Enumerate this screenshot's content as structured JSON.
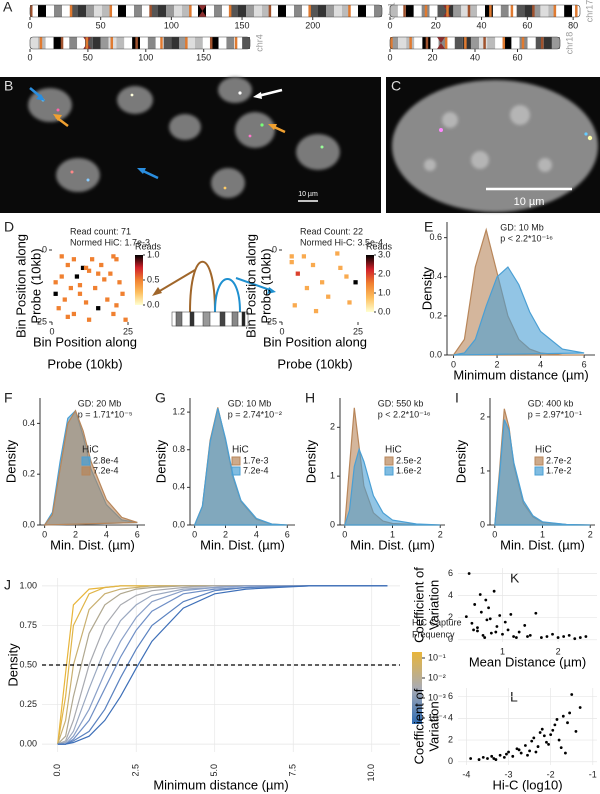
{
  "ideogram_panel": {
    "panel": "A",
    "chromosomes": [
      {
        "label": "chr1",
        "xlim": [
          0,
          249
        ],
        "ticks": [
          0,
          50,
          100,
          150,
          200
        ]
      },
      {
        "label": "chr17",
        "xlim": [
          0,
          83
        ],
        "ticks": [
          0,
          20,
          40,
          60,
          80
        ]
      },
      {
        "label": "chr4",
        "xlim": [
          0,
          190
        ],
        "ticks": [
          0,
          50,
          100,
          150
        ]
      },
      {
        "label": "chr18",
        "xlim": [
          0,
          80
        ],
        "ticks": [
          0,
          20,
          40,
          60
        ]
      }
    ]
  },
  "image_panels": [
    {
      "panel": "B",
      "scale_label": "10 µm"
    },
    {
      "panel": "C",
      "scale_label": "10 µm"
    }
  ],
  "chart_data": [
    {
      "type": "heatmap",
      "panel": "D",
      "annotations": [
        "Read count: 71",
        "Normed HiC: 1.7e-3"
      ],
      "ylabel": [
        "Bin Position along",
        "Probe (10kb)"
      ],
      "xlabel": [
        "Bin Position along",
        "Probe (10kb)"
      ],
      "xlim": [
        0,
        25
      ],
      "ylim": [
        25,
        0
      ],
      "xticks": [
        0,
        25
      ],
      "yticks": [
        0,
        25
      ],
      "colorbar_title": "Reads",
      "clim": [
        0,
        1
      ],
      "colorbar_ticks": [
        {
          "value": 0,
          "label": "0.0"
        },
        0.5,
        {
          "value": 1,
          "label": "1.0"
        }
      ],
      "cells": [
        [
          3,
          2,
          0.5
        ],
        [
          7,
          3,
          0.5
        ],
        [
          13,
          3,
          0.5
        ],
        [
          20,
          2,
          0.5
        ],
        [
          21,
          3,
          0.5
        ],
        [
          5,
          5,
          0.5
        ],
        [
          10,
          6,
          1
        ],
        [
          11,
          6,
          0.5
        ],
        [
          12,
          7,
          0.5
        ],
        [
          15,
          8,
          0.5
        ],
        [
          19,
          8,
          0.5
        ],
        [
          3,
          9,
          0.5
        ],
        [
          8,
          9,
          1
        ],
        [
          1,
          11,
          0.5
        ],
        [
          17,
          10,
          0.5
        ],
        [
          22,
          11,
          0.5
        ],
        [
          6,
          13,
          0.5
        ],
        [
          14,
          13,
          0.5
        ],
        [
          1,
          15,
          1
        ],
        [
          9,
          15,
          0.5
        ],
        [
          23,
          15,
          0.5
        ],
        [
          4,
          17,
          0.5
        ],
        [
          11,
          18,
          0.5
        ],
        [
          18,
          17,
          0.5
        ],
        [
          2,
          20,
          0.5
        ],
        [
          15,
          20,
          1
        ],
        [
          7,
          22,
          0.5
        ],
        [
          20,
          22,
          0.5
        ],
        [
          12,
          24,
          0.5
        ],
        [
          24,
          24,
          0.5
        ],
        [
          16,
          5,
          0.5
        ],
        [
          9,
          12,
          0.5
        ],
        [
          21,
          19,
          0.5
        ],
        [
          5,
          23,
          0.5
        ]
      ]
    },
    {
      "type": "heatmap",
      "annotations": [
        "Read Count: 22",
        "Normed Hi-C: 3.5e-4"
      ],
      "ylabel": [
        "Bin Position along",
        "Probe (10kb)"
      ],
      "xlabel": [
        "Bin Position along",
        "Probe (10kb)"
      ],
      "xlim": [
        0,
        25
      ],
      "ylim": [
        25,
        0
      ],
      "xticks": [
        0,
        25
      ],
      "yticks": [
        0,
        25
      ],
      "colorbar_title": "Reads",
      "clim": [
        0,
        3
      ],
      "colorbar_ticks": [
        {
          "value": 0,
          "label": "0.0"
        },
        {
          "value": 1,
          "label": "1.0"
        },
        {
          "value": 2,
          "label": "2.0"
        },
        {
          "value": 3,
          "label": "3.0"
        }
      ],
      "cells": [
        [
          3,
          2,
          1
        ],
        [
          7,
          2,
          1
        ],
        [
          18,
          1,
          1
        ],
        [
          3,
          4,
          1
        ],
        [
          10,
          5,
          1
        ],
        [
          19,
          6,
          1
        ],
        [
          5,
          8,
          2
        ],
        [
          21,
          9,
          1
        ],
        [
          13,
          11,
          1
        ],
        [
          24,
          11,
          3
        ],
        [
          8,
          13,
          1
        ],
        [
          15,
          16,
          1
        ],
        [
          22,
          18,
          1
        ],
        [
          4,
          19,
          1
        ],
        [
          11,
          21,
          1
        ]
      ]
    },
    {
      "type": "density",
      "panel": "E",
      "annotations": [
        "GD: 10 Mb",
        "p < 2.2*10⁻¹⁶"
      ],
      "ylabel": [
        "Density"
      ],
      "xlabel": [
        "Minimum distance (µm)"
      ],
      "xlim": [
        -0.3,
        6.5
      ],
      "ylim": [
        0,
        0.68
      ],
      "xticks": [
        0,
        2,
        4,
        6
      ],
      "yticks": [
        {
          "value": 0,
          "label": "0.0"
        },
        0.2,
        0.4,
        0.6
      ],
      "x": [
        0,
        0.5,
        1,
        1.5,
        2,
        2.5,
        3,
        3.5,
        4,
        5,
        6
      ],
      "series": [
        {
          "color": "#b8865a",
          "values": [
            0,
            0.08,
            0.45,
            0.64,
            0.42,
            0.2,
            0.08,
            0.03,
            0.01,
            0,
            0
          ]
        },
        {
          "color": "#4a9fd4",
          "values": [
            0,
            0.01,
            0.08,
            0.25,
            0.4,
            0.45,
            0.36,
            0.22,
            0.12,
            0.03,
            0.01
          ]
        }
      ]
    },
    {
      "type": "density",
      "panel": "F",
      "annotations": [
        "GD: 20 Mb",
        "p = 1.71*10⁻⁵"
      ],
      "ylabel": [
        "Density"
      ],
      "xlabel": [
        "Min. Dist. (µm)"
      ],
      "xlim": [
        -0.3,
        6.5
      ],
      "ylim": [
        0,
        0.5
      ],
      "xticks": [
        0,
        2,
        4,
        6
      ],
      "yticks": [
        {
          "value": 0,
          "label": "0.0"
        },
        0.2,
        0.4
      ],
      "legend_title": "HiC",
      "x": [
        0,
        0.5,
        1,
        1.5,
        2,
        2.5,
        3,
        4,
        5,
        6
      ],
      "series": [
        {
          "name": "2.8e-4",
          "color": "#4a9fd4",
          "values": [
            0,
            0.05,
            0.25,
            0.42,
            0.45,
            0.35,
            0.22,
            0.08,
            0.02,
            0.01
          ]
        },
        {
          "name": "7.2e-4",
          "color": "#b8865a",
          "values": [
            0,
            0.04,
            0.22,
            0.4,
            0.45,
            0.37,
            0.25,
            0.1,
            0.03,
            0.01
          ]
        }
      ]
    },
    {
      "type": "density",
      "panel": "G",
      "annotations": [
        "GD: 10 Mb",
        "p = 2.74*10⁻²"
      ],
      "ylabel": [
        "Density"
      ],
      "xlabel": [
        "Min. Dist. (µm)"
      ],
      "xlim": [
        -0.3,
        6.5
      ],
      "ylim": [
        0,
        1.35
      ],
      "xticks": [
        0,
        2,
        4,
        6
      ],
      "yticks": [
        {
          "value": 0,
          "label": "0.0"
        },
        0.4,
        0.8,
        1.2
      ],
      "legend_title": "HiC",
      "x": [
        0,
        0.5,
        1,
        1.5,
        2,
        2.5,
        3,
        4,
        5,
        6
      ],
      "series": [
        {
          "name": "1.7e-3",
          "color": "#b8865a",
          "values": [
            0,
            0.2,
            0.9,
            1.25,
            0.9,
            0.5,
            0.25,
            0.06,
            0.01,
            0
          ]
        },
        {
          "name": "7.2e-4",
          "color": "#4a9fd4",
          "values": [
            0,
            0.2,
            0.88,
            1.24,
            0.92,
            0.52,
            0.26,
            0.07,
            0.01,
            0
          ]
        }
      ]
    },
    {
      "type": "density",
      "panel": "H",
      "annotations": [
        "GD: 550 kb",
        "p < 2.2*10⁻¹⁶"
      ],
      "ylabel": [
        "Density"
      ],
      "xlabel": [
        "Min. Dist. (µm)"
      ],
      "xlim": [
        -0.1,
        2.1
      ],
      "ylim": [
        0,
        2.6
      ],
      "xticks": [
        0,
        1,
        2
      ],
      "yticks": [
        0,
        1,
        2
      ],
      "legend_title": "HiC",
      "x": [
        0,
        0.1,
        0.2,
        0.3,
        0.4,
        0.6,
        0.8,
        1,
        1.5,
        2
      ],
      "series": [
        {
          "name": "2.5e-2",
          "color": "#b8865a",
          "values": [
            0,
            1.2,
            2.4,
            1.6,
            0.8,
            0.25,
            0.08,
            0.03,
            0.01,
            0
          ]
        },
        {
          "name": "1.6e-2",
          "color": "#4a9fd4",
          "values": [
            0,
            0.3,
            1.2,
            1.55,
            1.3,
            0.6,
            0.25,
            0.1,
            0.02,
            0
          ]
        }
      ]
    },
    {
      "type": "density",
      "panel": "I",
      "annotations": [
        "GD: 400 kb",
        "p = 2.97*10⁻¹"
      ],
      "ylabel": [
        "Density"
      ],
      "xlabel": [
        "Min. Dist. (µm)"
      ],
      "xlim": [
        -0.1,
        2.1
      ],
      "ylim": [
        0,
        2.35
      ],
      "xticks": [
        0,
        1,
        2
      ],
      "yticks": [
        0,
        1,
        2
      ],
      "legend_title": "HiC",
      "x": [
        0,
        0.1,
        0.2,
        0.3,
        0.4,
        0.6,
        0.8,
        1,
        1.5,
        2
      ],
      "series": [
        {
          "name": "2.7e-2",
          "color": "#b8865a",
          "values": [
            0,
            1.0,
            2.15,
            1.8,
            1.1,
            0.4,
            0.15,
            0.05,
            0.01,
            0
          ]
        },
        {
          "name": "1.7e-2",
          "color": "#4a9fd4",
          "values": [
            0,
            0.9,
            1.95,
            1.75,
            1.15,
            0.45,
            0.17,
            0.06,
            0.01,
            0
          ]
        }
      ]
    },
    {
      "type": "ecdf",
      "panel": "J",
      "ylabel": [
        "Density"
      ],
      "xlabel": [
        "Minimum distance (µm)"
      ],
      "grid": true,
      "xlim": [
        -0.5,
        10.9
      ],
      "ylim": [
        -0.05,
        1.05
      ],
      "xticks": [
        {
          "value": 0,
          "label": "0.0"
        },
        2.5,
        {
          "value": 5,
          "label": "5.0"
        },
        7.5,
        {
          "value": 10,
          "label": "10.0"
        }
      ],
      "yticks": [
        {
          "value": 0,
          "label": "0.00"
        },
        {
          "value": 0.25,
          "label": "0.25"
        },
        {
          "value": 0.5,
          "label": "0.50"
        },
        {
          "value": 0.75,
          "label": "0.75"
        },
        {
          "value": 1,
          "label": "1.00"
        }
      ],
      "hline": 0.5,
      "legend_title": [
        "HiC Capture",
        "Frequency"
      ],
      "legend_ticks": [
        {
          "value": -1,
          "label": "10⁻¹"
        },
        {
          "value": -2,
          "label": "10⁻²"
        },
        {
          "value": -3,
          "label": "10⁻³"
        },
        {
          "value": -4,
          "label": "10⁻⁴"
        }
      ],
      "x": [
        0,
        0.25,
        0.5,
        1,
        1.5,
        2,
        2.5,
        3,
        4,
        5,
        6,
        8,
        10.5
      ],
      "series": [
        {
          "color": "#e8b53a",
          "values": [
            0,
            0.45,
            0.88,
            0.98,
            0.99,
            1,
            1,
            1,
            1,
            1,
            1,
            1,
            1
          ]
        },
        {
          "color": "#e0b548",
          "values": [
            0,
            0.3,
            0.75,
            0.95,
            0.99,
            1,
            1,
            1,
            1,
            1,
            1,
            1,
            1
          ]
        },
        {
          "color": "#c9b070",
          "values": [
            0,
            0.15,
            0.5,
            0.85,
            0.95,
            0.98,
            0.99,
            1,
            1,
            1,
            1,
            1,
            1
          ]
        },
        {
          "color": "#b0a890",
          "values": [
            0,
            0.05,
            0.3,
            0.7,
            0.88,
            0.95,
            0.98,
            0.99,
            1,
            1,
            1,
            1,
            1
          ]
        },
        {
          "color": "#a8aab0",
          "values": [
            0,
            0.02,
            0.15,
            0.5,
            0.75,
            0.88,
            0.94,
            0.97,
            0.99,
            1,
            1,
            1,
            1
          ]
        },
        {
          "color": "#9aa8c0",
          "values": [
            0,
            0.01,
            0.08,
            0.35,
            0.6,
            0.78,
            0.88,
            0.94,
            0.98,
            0.99,
            1,
            1,
            1
          ]
        },
        {
          "color": "#8aa0c8",
          "values": [
            0,
            0,
            0.05,
            0.22,
            0.45,
            0.65,
            0.8,
            0.9,
            0.97,
            0.99,
            1,
            1,
            1
          ]
        },
        {
          "color": "#6f8fc6",
          "values": [
            0,
            0,
            0.03,
            0.15,
            0.35,
            0.55,
            0.72,
            0.84,
            0.95,
            0.98,
            0.99,
            1,
            1
          ]
        },
        {
          "color": "#5a82c0",
          "values": [
            0,
            0,
            0.02,
            0.08,
            0.22,
            0.42,
            0.6,
            0.75,
            0.9,
            0.97,
            0.99,
            1,
            1
          ]
        },
        {
          "color": "#3d6fb8",
          "values": [
            0,
            0,
            0.01,
            0.05,
            0.15,
            0.3,
            0.48,
            0.65,
            0.86,
            0.95,
            0.98,
            1,
            1
          ]
        }
      ]
    },
    {
      "type": "scatter",
      "panel": "K",
      "ylabel": [
        "Coefficient of",
        "Variation"
      ],
      "xlabel": [
        "Mean Distance (µm)"
      ],
      "grid": true,
      "color": "#000000",
      "xlim": [
        0.2,
        2.7
      ],
      "ylim": [
        -0.2,
        6.5
      ],
      "xticks": [
        1,
        2
      ],
      "yticks": [
        0,
        2,
        4,
        6
      ],
      "x": [
        0.35,
        0.4,
        0.45,
        0.5,
        0.55,
        0.6,
        0.62,
        0.65,
        0.7,
        0.72,
        0.75,
        0.8,
        0.85,
        0.9,
        0.95,
        1.0,
        1.05,
        1.1,
        1.15,
        1.2,
        1.3,
        1.4,
        1.5,
        1.6,
        1.7,
        1.8,
        1.9,
        2.0,
        2.1,
        2.2,
        2.3,
        2.4,
        2.5,
        0.55,
        0.68,
        0.78,
        0.88,
        1.25,
        1.45,
        0.48
      ],
      "values": [
        2.1,
        6.0,
        1.5,
        3.2,
        0.8,
        4.1,
        2.5,
        0.4,
        3.6,
        1.8,
        2.9,
        0.6,
        4.4,
        1.2,
        2.2,
        0.5,
        1.6,
        0.9,
        2.3,
        0.3,
        0.7,
        1.3,
        0.4,
        2.4,
        0.2,
        0.3,
        0.5,
        0.2,
        0.3,
        0.4,
        0.1,
        0.2,
        0.3,
        1.1,
        0.2,
        1.9,
        0.7,
        0.2,
        0.3,
        0.9
      ]
    },
    {
      "type": "scatter",
      "panel": "L",
      "ylabel": [
        "Coefficient of",
        "Variation"
      ],
      "xlabel": [
        "Hi-C (log10)"
      ],
      "grid": true,
      "color": "#000000",
      "xlim": [
        -4.2,
        -0.9
      ],
      "ylim": [
        -0.3,
        6.8
      ],
      "xticks": [
        -4,
        -3,
        -2,
        -1
      ],
      "yticks": [
        0,
        2,
        4,
        6
      ],
      "x": [
        -3.9,
        -3.7,
        -3.6,
        -3.5,
        -3.4,
        -3.3,
        -3.2,
        -3.1,
        -3.0,
        -2.9,
        -2.8,
        -2.7,
        -2.6,
        -2.5,
        -2.4,
        -2.3,
        -2.2,
        -2.1,
        -2.0,
        -1.9,
        -1.8,
        -1.7,
        -1.6,
        -1.5,
        -1.4,
        -1.3,
        -3.35,
        -3.05,
        -2.75,
        -2.45,
        -2.15,
        -1.85,
        -1.55,
        -2.35,
        -2.05,
        -1.95,
        -1.75,
        -1.65,
        -2.55,
        -2.25
      ],
      "values": [
        0.3,
        0.2,
        0.4,
        0.3,
        0.5,
        0.2,
        0.6,
        0.4,
        0.9,
        0.5,
        1.2,
        0.8,
        1.5,
        1.0,
        2.2,
        1.4,
        3.0,
        1.8,
        2.5,
        3.4,
        2.0,
        4.2,
        3.6,
        6.2,
        2.8,
        5.0,
        0.3,
        0.7,
        1.1,
        1.9,
        2.4,
        3.9,
        4.5,
        0.9,
        1.6,
        2.9,
        1.3,
        0.8,
        0.6,
        2.7
      ]
    }
  ]
}
